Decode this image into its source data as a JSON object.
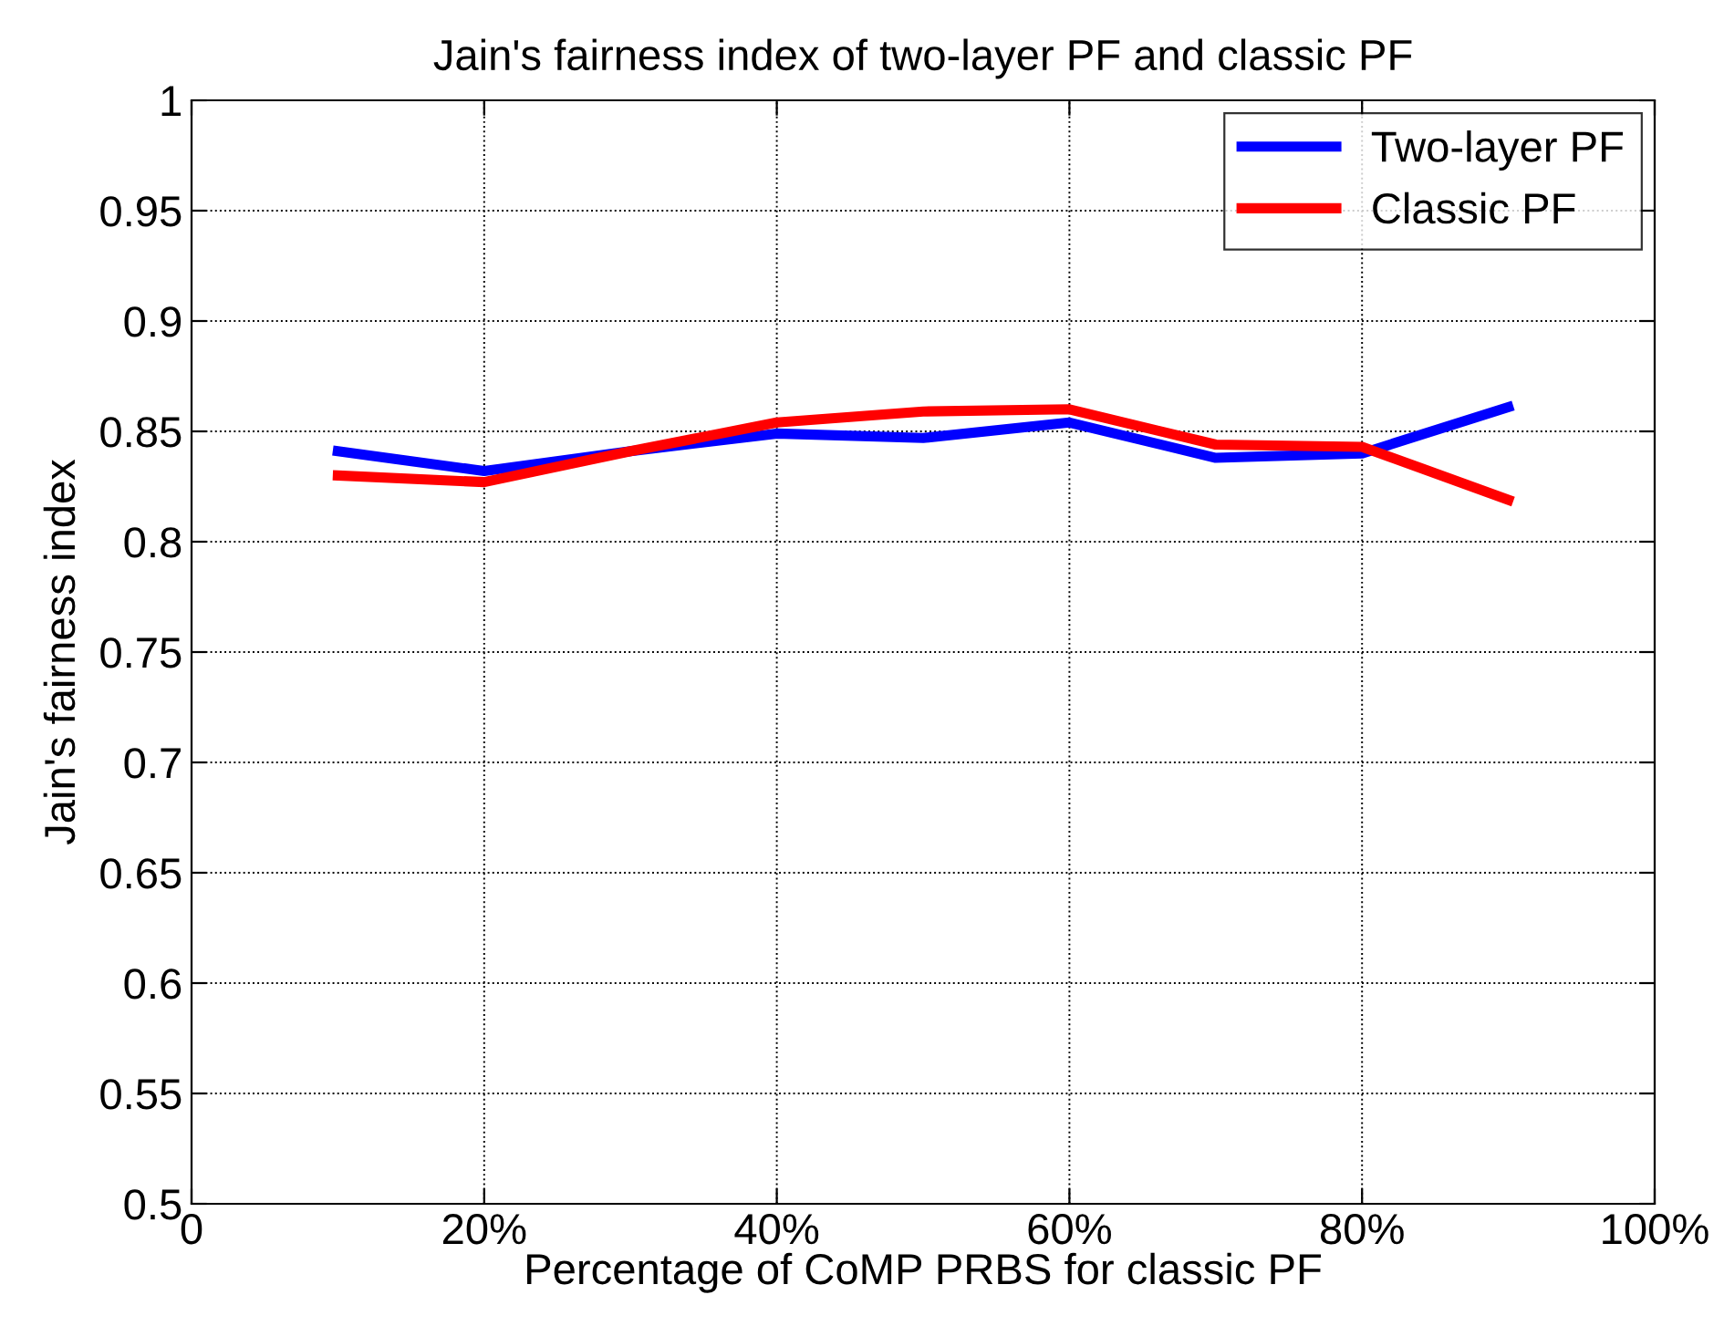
{
  "chart_data": {
    "type": "line",
    "title": "Jain's fairness index of two-layer PF and classic PF",
    "xlabel": "Percentage of CoMP PRBS for classic PF",
    "ylabel": "Jain's fairness index",
    "x": [
      10,
      20,
      30,
      40,
      50,
      60,
      70,
      80,
      90
    ],
    "series": [
      {
        "name": "Two-layer PF",
        "color": "#0000ff",
        "values": [
          0.841,
          0.832,
          0.841,
          0.849,
          0.847,
          0.854,
          0.838,
          0.84,
          0.861
        ]
      },
      {
        "name": "Classic PF",
        "color": "#ff0000",
        "values": [
          0.83,
          0.827,
          0.841,
          0.854,
          0.859,
          0.86,
          0.844,
          0.843,
          0.819
        ]
      }
    ],
    "xlim": [
      0,
      100
    ],
    "xticks": [
      0,
      {
        "value": 20,
        "label": "20%"
      },
      {
        "value": 40,
        "label": "40%"
      },
      {
        "value": 60,
        "label": "60%"
      },
      {
        "value": 80,
        "label": "80%"
      },
      {
        "value": 100,
        "label": "100%"
      }
    ],
    "ylim": [
      0.5,
      1
    ],
    "yticks": [
      0.5,
      0.55,
      0.6,
      0.65,
      0.7,
      0.75,
      0.8,
      0.85,
      0.9,
      0.95,
      1
    ],
    "grid": true,
    "legend": "top right",
    "line_style": "solid",
    "marker": "none"
  }
}
